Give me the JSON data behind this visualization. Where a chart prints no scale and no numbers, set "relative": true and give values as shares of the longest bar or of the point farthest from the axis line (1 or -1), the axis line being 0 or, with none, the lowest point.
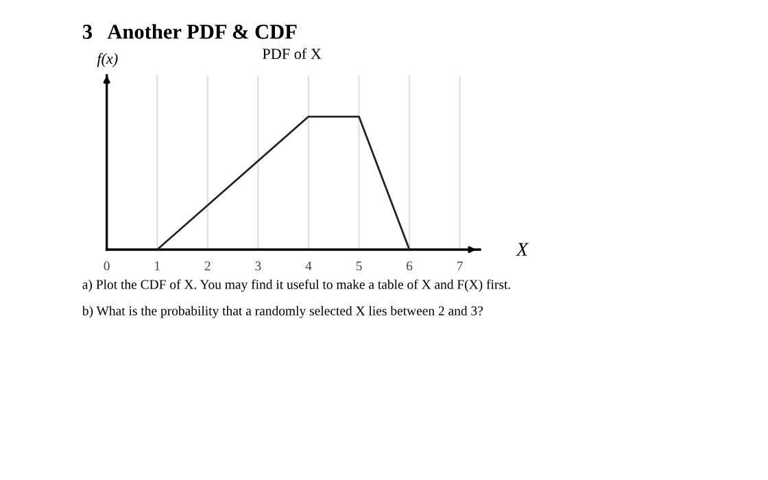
{
  "chart_data": {
    "type": "line",
    "title": "3   Another PDF & CDF",
    "subtitle": "PDF of X",
    "ylabel": "f(x)",
    "xlabel": "X",
    "x": [
      1,
      4,
      5,
      6
    ],
    "series": [
      {
        "color": "#222222",
        "values": [
          0,
          1,
          1,
          0
        ]
      }
    ],
    "relative": true,
    "xlim": [
      0,
      7.4
    ],
    "xticks": [
      0,
      1,
      2,
      3,
      4,
      5,
      6,
      7
    ],
    "grid": "x",
    "marker": "none",
    "line_style": "solid",
    "annotations": [
      "a) Plot the CDF of X. You may find it useful to make a table of X and F(X) first.",
      "b) What is the probability that a randomly selected X lies between 2 and 3?"
    ]
  }
}
